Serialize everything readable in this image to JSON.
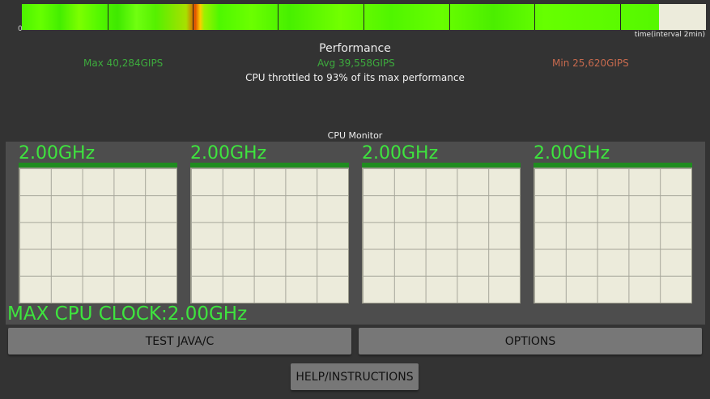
{
  "performance_graph": {
    "axis_zero_label": "0",
    "axis_caption": "time(interval 2min)",
    "filled_fraction": 0.931
  },
  "performance": {
    "title": "Performance",
    "max": "Max 40,284GIPS",
    "avg": "Avg 39,558GIPS",
    "min": "Min 25,620GIPS",
    "throttle_note": "CPU throttled to 93% of its max performance"
  },
  "cpu_monitor": {
    "title": "CPU Monitor",
    "cores": [
      {
        "frequency": "2.00GHz"
      },
      {
        "frequency": "2.00GHz"
      },
      {
        "frequency": "2.00GHz"
      },
      {
        "frequency": "2.00GHz"
      }
    ],
    "max_clock": "MAX CPU CLOCK:2.00GHz"
  },
  "buttons": {
    "test": "TEST JAVA/C",
    "options": "OPTIONS",
    "help": "HELP/INSTRUCTIONS"
  },
  "colors": {
    "background": "#333333",
    "accent_green": "#3ee43e",
    "stat_green": "#3dab3d",
    "stat_red": "#c76a4e",
    "grid_bg": "#ecebdb"
  }
}
